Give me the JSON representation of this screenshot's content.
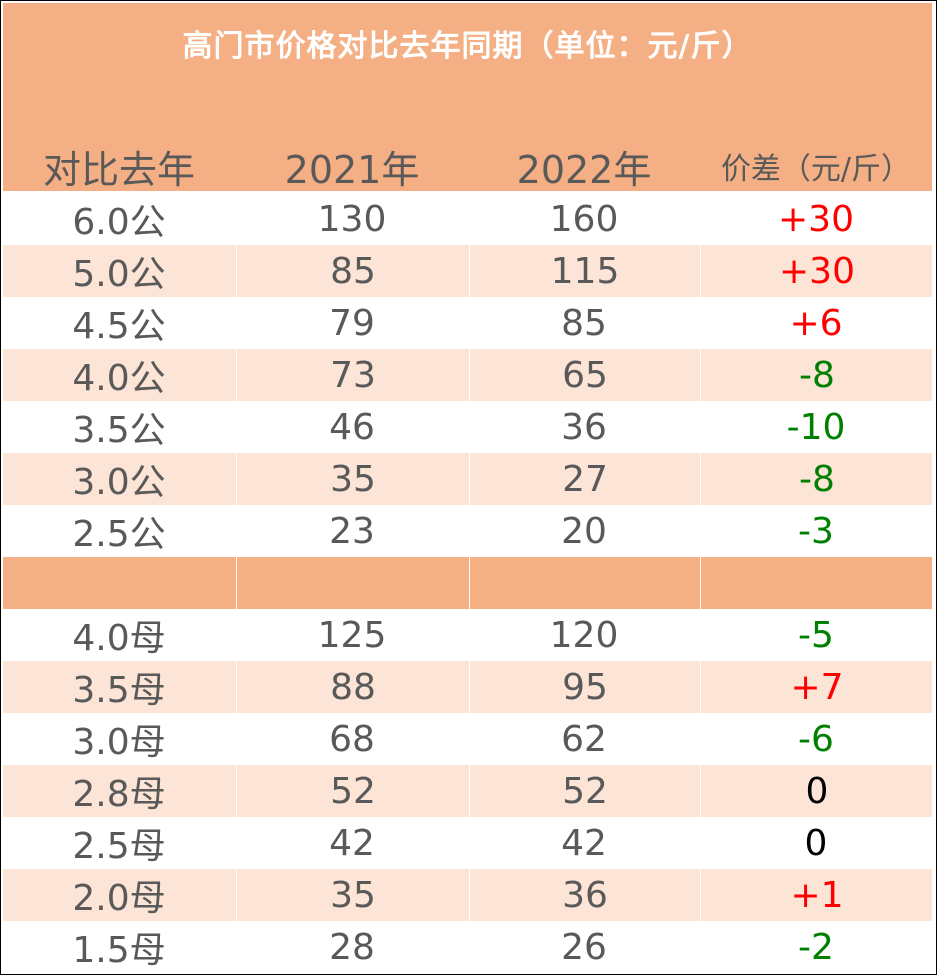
{
  "title": "高门市价格对比去年同期（单位：元/斤）",
  "headers": [
    "对比去年",
    "2021年",
    "2022年",
    "价差（元/斤）"
  ],
  "colors": {
    "header_bg": "#f4b084",
    "stripe_bg": "#fce4d6",
    "positive": "#ff0000",
    "negative": "#008000",
    "zero": "#000000",
    "text": "#595959"
  },
  "rows_male": [
    {
      "size": "6.0公",
      "y2021": "130",
      "y2022": "160",
      "diff": "+30",
      "sign": "positive"
    },
    {
      "size": "5.0公",
      "y2021": "85",
      "y2022": "115",
      "diff": "+30",
      "sign": "positive"
    },
    {
      "size": "4.5公",
      "y2021": "79",
      "y2022": "85",
      "diff": "+6",
      "sign": "positive"
    },
    {
      "size": "4.0公",
      "y2021": "73",
      "y2022": "65",
      "diff": "-8",
      "sign": "negative"
    },
    {
      "size": "3.5公",
      "y2021": "46",
      "y2022": "36",
      "diff": "-10",
      "sign": "negative"
    },
    {
      "size": "3.0公",
      "y2021": "35",
      "y2022": "27",
      "diff": "-8",
      "sign": "negative"
    },
    {
      "size": "2.5公",
      "y2021": "23",
      "y2022": "20",
      "diff": "-3",
      "sign": "negative"
    }
  ],
  "rows_female": [
    {
      "size": "4.0母",
      "y2021": "125",
      "y2022": "120",
      "diff": "-5",
      "sign": "negative"
    },
    {
      "size": "3.5母",
      "y2021": "88",
      "y2022": "95",
      "diff": "+7",
      "sign": "positive"
    },
    {
      "size": "3.0母",
      "y2021": "68",
      "y2022": "62",
      "diff": "-6",
      "sign": "negative"
    },
    {
      "size": "2.8母",
      "y2021": "52",
      "y2022": "52",
      "diff": "0",
      "sign": "zero"
    },
    {
      "size": "2.5母",
      "y2021": "42",
      "y2022": "42",
      "diff": "0",
      "sign": "zero"
    },
    {
      "size": "2.0母",
      "y2021": "35",
      "y2022": "36",
      "diff": "+1",
      "sign": "positive"
    },
    {
      "size": "1.5母",
      "y2021": "28",
      "y2022": "26",
      "diff": "-2",
      "sign": "negative"
    }
  ]
}
